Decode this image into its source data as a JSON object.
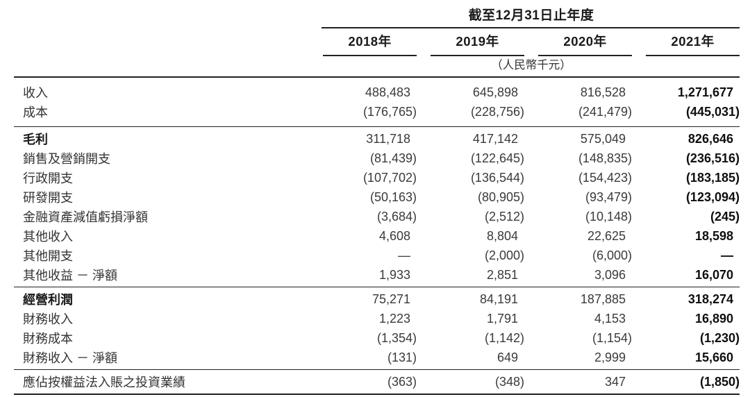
{
  "header": {
    "period_title": "截至12月31日止年度",
    "unit_note": "（人民幣千元）",
    "years": [
      "2018年",
      "2019年",
      "2020年",
      "2021年"
    ]
  },
  "table": {
    "sections": [
      {
        "rows": [
          {
            "label": "收入",
            "bold": false,
            "values": [
              "488,483",
              "645,898",
              "816,528",
              "1,271,677"
            ]
          },
          {
            "label": "成本",
            "bold": false,
            "values": [
              "(176,765)",
              "(228,756)",
              "(241,479)",
              "(445,031)"
            ]
          }
        ]
      },
      {
        "rows": [
          {
            "label": "毛利",
            "bold": true,
            "values": [
              "311,718",
              "417,142",
              "575,049",
              "826,646"
            ]
          },
          {
            "label": "銷售及營銷開支",
            "bold": false,
            "values": [
              "(81,439)",
              "(122,645)",
              "(148,835)",
              "(236,516)"
            ]
          },
          {
            "label": "行政開支",
            "bold": false,
            "values": [
              "(107,702)",
              "(136,544)",
              "(154,423)",
              "(183,185)"
            ]
          },
          {
            "label": "研發開支",
            "bold": false,
            "values": [
              "(50,163)",
              "(80,905)",
              "(93,479)",
              "(123,094)"
            ]
          },
          {
            "label": "金融資產減值虧損淨額",
            "bold": false,
            "values": [
              "(3,684)",
              "(2,512)",
              "(10,148)",
              "(245)"
            ]
          },
          {
            "label": "其他收入",
            "bold": false,
            "values": [
              "4,608",
              "8,804",
              "22,625",
              "18,598"
            ]
          },
          {
            "label": "其他開支",
            "bold": false,
            "values": [
              "—",
              "(2,000)",
              "(6,000)",
              "—"
            ]
          },
          {
            "label": "其他收益 － 淨額",
            "bold": false,
            "values": [
              "1,933",
              "2,851",
              "3,096",
              "16,070"
            ]
          }
        ]
      },
      {
        "rows": [
          {
            "label": "經營利潤",
            "bold": true,
            "values": [
              "75,271",
              "84,191",
              "187,885",
              "318,274"
            ]
          },
          {
            "label": "財務收入",
            "bold": false,
            "values": [
              "1,223",
              "1,791",
              "4,153",
              "16,890"
            ]
          },
          {
            "label": "財務成本",
            "bold": false,
            "values": [
              "(1,354)",
              "(1,142)",
              "(1,154)",
              "(1,230)"
            ]
          },
          {
            "label": "財務收入 － 淨額",
            "bold": false,
            "values": [
              "(131)",
              "649",
              "2,999",
              "15,660"
            ]
          }
        ]
      },
      {
        "rows": [
          {
            "label": "應佔按權益法入賬之投資業績",
            "bold": false,
            "values": [
              "(363)",
              "(348)",
              "347",
              "(1,850)"
            ]
          }
        ]
      }
    ]
  }
}
